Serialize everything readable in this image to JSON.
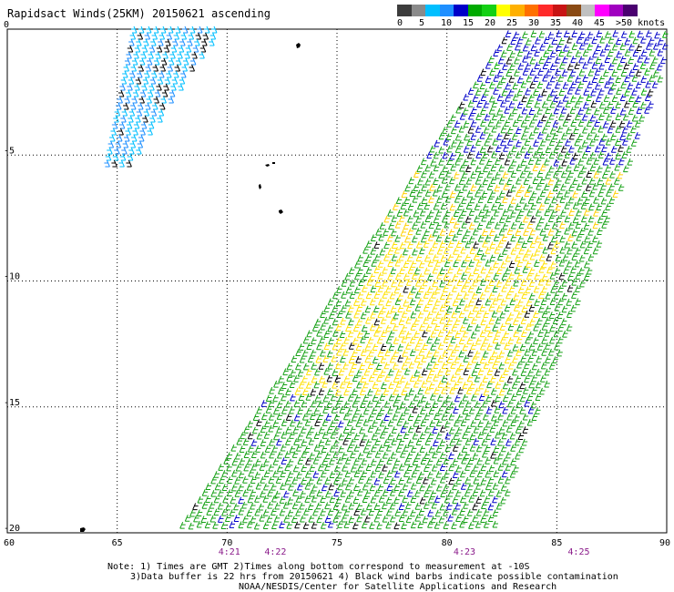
{
  "title": "Rapidsact Winds(25KM) 20150621 ascending",
  "legend": {
    "colors": [
      "#3c3c3c",
      "#8a8a8a",
      "#00bfff",
      "#1f8fff",
      "#0000c8",
      "#00aa00",
      "#14d014",
      "#ffff00",
      "#ffb000",
      "#ff7000",
      "#ff2a2a",
      "#c81414",
      "#8a4a14",
      "#c0c0c0",
      "#ff00ff",
      "#a000c0",
      "#4a0070"
    ],
    "labels": [
      {
        "text": "0",
        "at": 0
      },
      {
        "text": "5",
        "at": 1
      },
      {
        "text": "10",
        "at": 2
      },
      {
        "text": "15",
        "at": 3
      },
      {
        "text": "20",
        "at": 4
      },
      {
        "text": "25",
        "at": 5
      },
      {
        "text": "30",
        "at": 6
      },
      {
        "text": "35",
        "at": 7
      },
      {
        "text": "40",
        "at": 8
      },
      {
        "text": "45",
        "at": 9
      },
      {
        "text": ">50 knots",
        "at": 10
      }
    ]
  },
  "axes": {
    "lat_ticks": [
      "0",
      "-5",
      "-10",
      "-15",
      "-20"
    ],
    "lon_ticks": [
      "60",
      "65",
      "70",
      "75",
      "80",
      "85",
      "90"
    ]
  },
  "time_labels": [
    "4:21",
    "4:22",
    "4:23",
    "4:25"
  ],
  "notes": [
    "Note: 1) Times are GMT 2)Times along bottom correspond to measurement at -10S",
    "3)Data buffer is 22 hrs from 20150621 4) Black wind barbs indicate possible contamination",
    "NOAA/NESDIS/Center for Satellite Applications and Research"
  ]
}
